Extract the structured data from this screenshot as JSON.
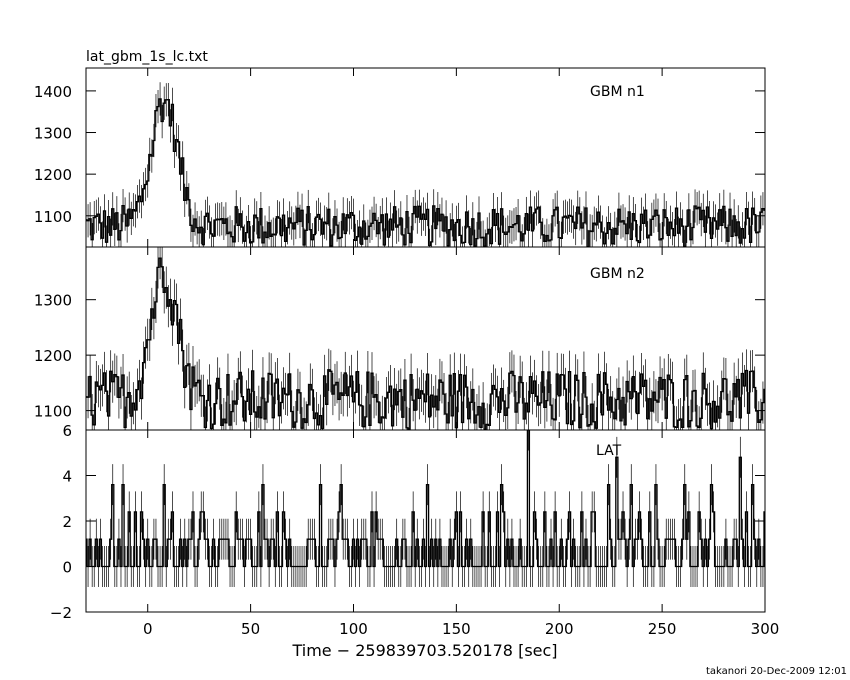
{
  "header": {
    "title": "lat_gbm_1s_lc.txt"
  },
  "footer": {
    "stamp": "takanori 20-Dec-2009 12:01"
  },
  "chart_data": {
    "type": "line",
    "title": "lat_gbm_1s_lc.txt",
    "xlabel": "Time − 259839703.520178 [sec]",
    "xlim": [
      -30,
      300
    ],
    "xticks": [
      0,
      50,
      100,
      150,
      200,
      250,
      300
    ],
    "grid": false,
    "panels": [
      {
        "name": "GBM n1",
        "ylim": [
          1025,
          1455
        ],
        "yticks": [
          1100,
          1200,
          1300,
          1400
        ],
        "baseline": 1075,
        "noise": 55,
        "errbar": 40,
        "peak": {
          "center": 8,
          "width": 6.5,
          "height": 300
        },
        "extra_peaks": [],
        "series": [
          {
            "name": "GBM n1"
          }
        ]
      },
      {
        "name": "GBM n2",
        "ylim": [
          1065,
          1395
        ],
        "yticks": [
          1100,
          1200,
          1300
        ],
        "baseline": 1120,
        "noise": 60,
        "errbar": 38,
        "peak": {
          "center": 8,
          "width": 6.5,
          "height": 235
        },
        "extra_peaks": [],
        "series": [
          {
            "name": "GBM n2"
          }
        ]
      },
      {
        "name": "LAT",
        "ylim": [
          -2,
          6
        ],
        "yticks": [
          -2,
          0,
          2,
          4,
          6
        ],
        "counts": true,
        "errbar": 0.9,
        "extra_peaks": [
          {
            "x": 185,
            "value": 6
          },
          {
            "x": 228,
            "value": 4.8
          },
          {
            "x": 288,
            "value": 4.8
          }
        ],
        "series": [
          {
            "name": "LAT"
          }
        ]
      }
    ]
  }
}
